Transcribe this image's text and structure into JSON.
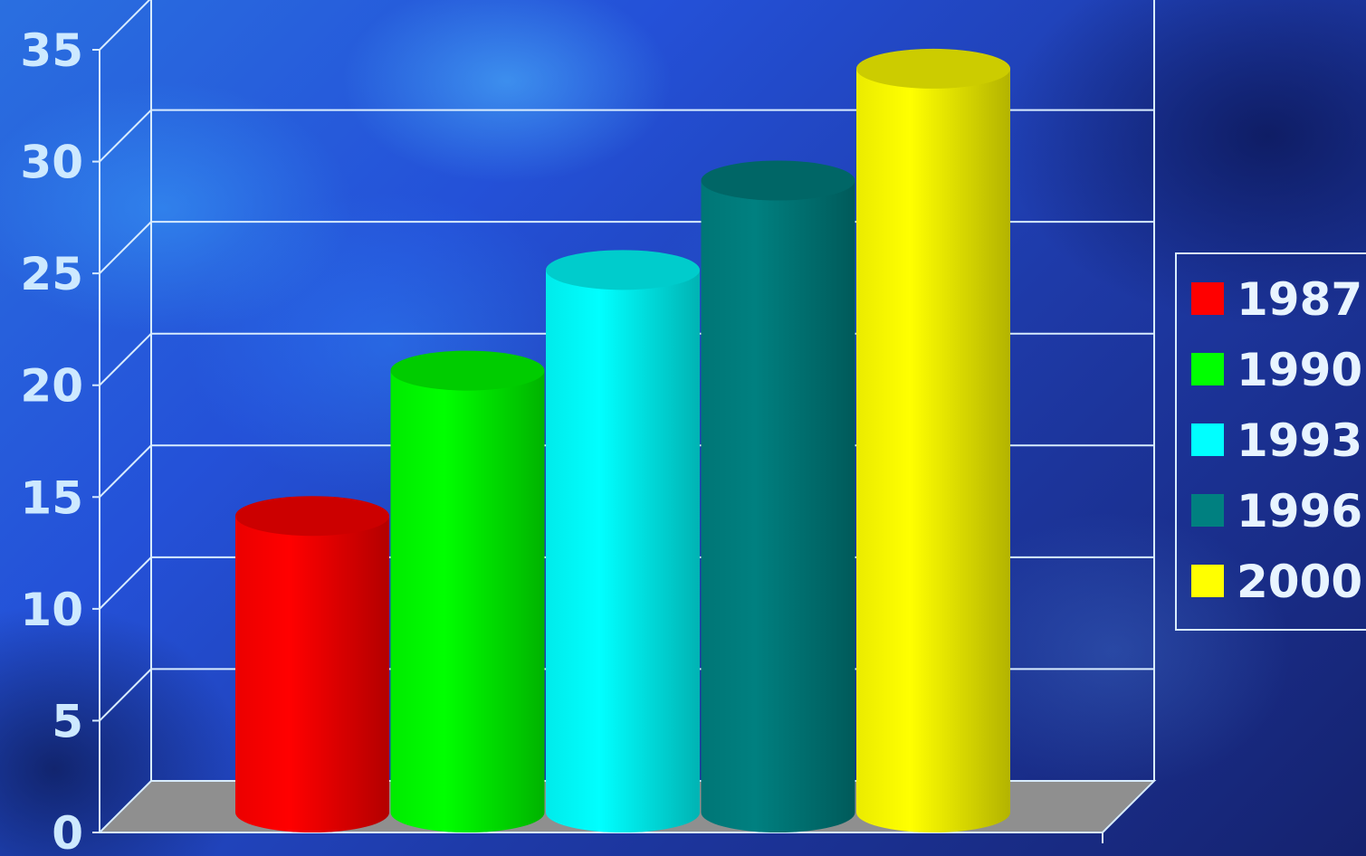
{
  "chart_data": {
    "type": "bar",
    "bar_shape": "cylinder",
    "three_d": true,
    "categories": [
      "1987",
      "1990",
      "1993",
      "1996",
      "2000"
    ],
    "values": [
      13,
      19.5,
      24,
      28,
      33
    ],
    "colors": [
      "#ff0000",
      "#00ff00",
      "#00ffff",
      "#008080",
      "#ffff00"
    ],
    "title": "",
    "xlabel": "",
    "ylabel": "",
    "ylim": [
      0,
      35
    ],
    "yticks": [
      "0",
      "5",
      "10",
      "15",
      "20",
      "25",
      "30",
      "35"
    ],
    "grid": true,
    "legend": {
      "position": "right",
      "entries": [
        "1987",
        "1990",
        "1993",
        "1996",
        "2000"
      ]
    },
    "background": "blue-textured"
  }
}
